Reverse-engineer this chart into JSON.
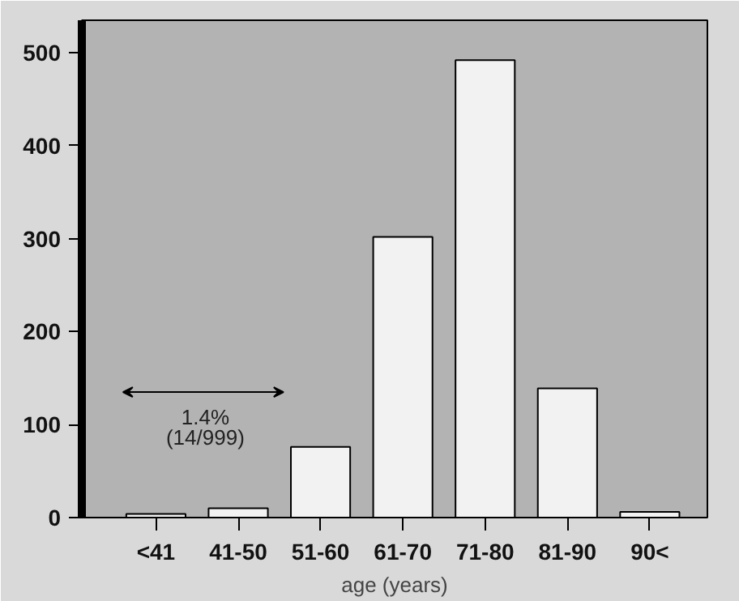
{
  "chart_data": {
    "type": "bar",
    "xlabel": "age (years)",
    "categories": [
      "<41",
      "41-50",
      "51-60",
      "61-70",
      "71-80",
      "81-90",
      "90<"
    ],
    "values": [
      4,
      10,
      76,
      302,
      492,
      139,
      6
    ],
    "color": "#f2f2f2",
    "ylim": [
      0,
      535
    ],
    "yticks": [
      0,
      100,
      200,
      300,
      400,
      500
    ],
    "grid": false,
    "annotations": [
      "1.4%\n(14/999)"
    ]
  }
}
